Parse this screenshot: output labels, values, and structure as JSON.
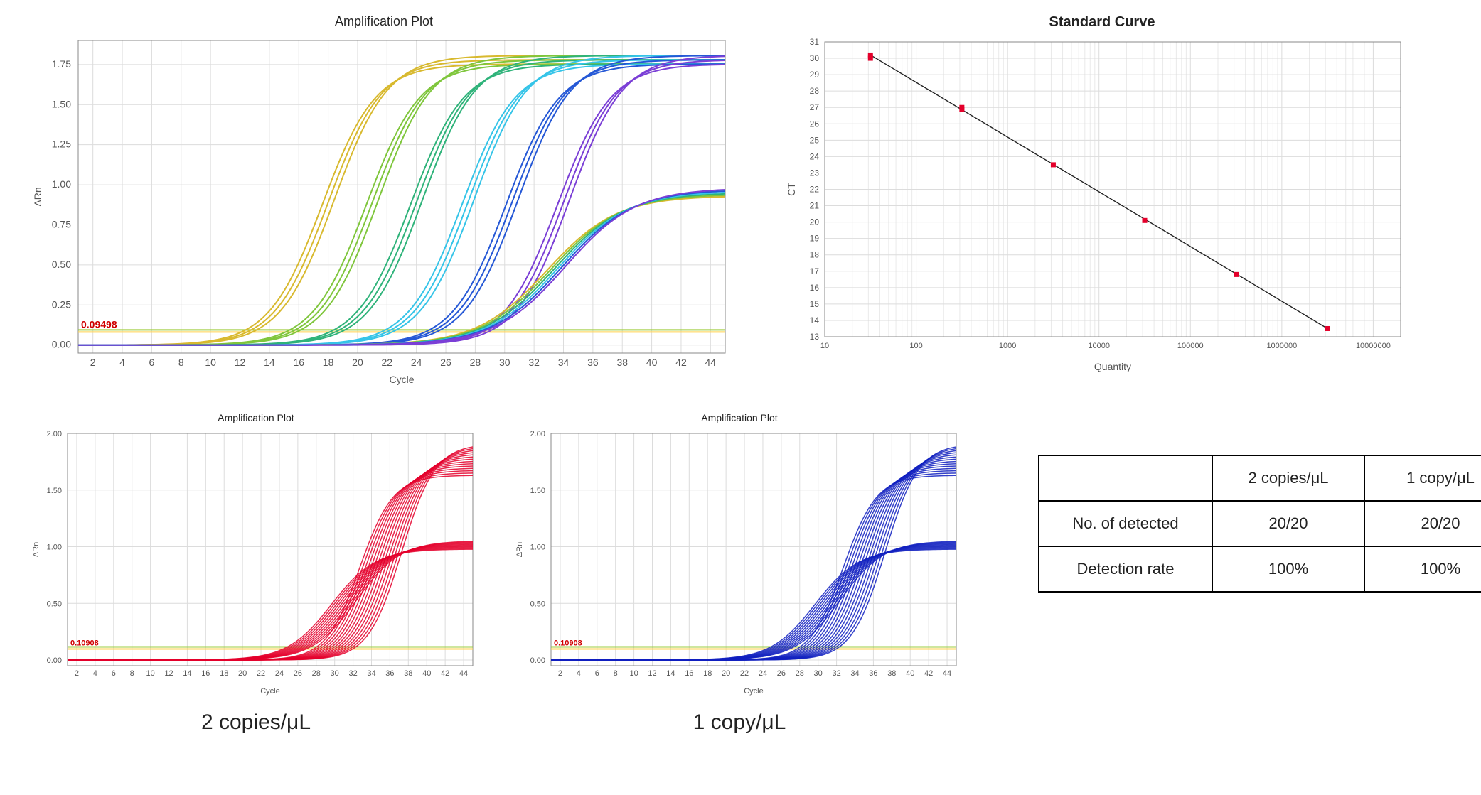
{
  "amp_main": {
    "type": "line",
    "title": "Amplification Plot",
    "xlabel": "Cycle",
    "ylabel": "ΔRn",
    "xlim": [
      1,
      45
    ],
    "ylim": [
      -0.05,
      1.9
    ],
    "xticks": [
      2,
      4,
      6,
      8,
      10,
      12,
      14,
      16,
      18,
      20,
      22,
      24,
      26,
      28,
      30,
      32,
      34,
      36,
      38,
      40,
      42,
      44
    ],
    "yticks": [
      0.0,
      0.25,
      0.5,
      0.75,
      1.0,
      1.25,
      1.5,
      1.75
    ],
    "threshold": 0.09,
    "threshold_label": "0.09498",
    "threshold_colors": [
      "#9ecc3c",
      "#ffd24d"
    ],
    "grid_color": "#dcdcdc",
    "background_color": "#ffffff",
    "border_color": "#888888",
    "line_width": 2,
    "amplitude_high": 1.78,
    "amplitude_low": 0.96,
    "groups": [
      {
        "color": "#d8b92e",
        "midshift": 18,
        "reps": 3
      },
      {
        "color": "#7fc63c",
        "midshift": 21,
        "reps": 3
      },
      {
        "color": "#2fb37a",
        "midshift": 24,
        "reps": 3
      },
      {
        "color": "#35c4e8",
        "midshift": 27.5,
        "reps": 3
      },
      {
        "color": "#2558d6",
        "midshift": 30.5,
        "reps": 3
      },
      {
        "color": "#7b3fd6",
        "midshift": 34,
        "reps": 3
      }
    ],
    "low_group": {
      "colors": [
        "#d8b92e",
        "#7fc63c",
        "#2fb37a",
        "#35c4e8",
        "#2558d6",
        "#7b3fd6"
      ],
      "midshift": 33.5,
      "reps": 6
    }
  },
  "std_curve": {
    "type": "scatter",
    "title": "Standard Curve",
    "xlabel": "Quantity",
    "ylabel": "CT",
    "xlim_log10": [
      1,
      7.3
    ],
    "ylim": [
      13,
      31
    ],
    "yticks": [
      13,
      14,
      15,
      16,
      17,
      18,
      19,
      20,
      21,
      22,
      23,
      24,
      25,
      26,
      27,
      28,
      29,
      30,
      31
    ],
    "xticks_log10": [
      1,
      2,
      3,
      4,
      5,
      6,
      7
    ],
    "xtick_labels": [
      "10",
      "100",
      "1000",
      "10000",
      "100000",
      "1000000",
      "10000000"
    ],
    "grid_color": "#dcdcdc",
    "background_color": "#ffffff",
    "border_color": "#888888",
    "point_color": "#e4002b",
    "point_size": 7,
    "line_color": "#222222",
    "line_width": 1.4,
    "points": [
      {
        "logq": 1.5,
        "ct": 30.2
      },
      {
        "logq": 1.5,
        "ct": 30.0
      },
      {
        "logq": 2.5,
        "ct": 26.9
      },
      {
        "logq": 2.5,
        "ct": 27.0
      },
      {
        "logq": 3.5,
        "ct": 23.5
      },
      {
        "logq": 4.5,
        "ct": 20.1
      },
      {
        "logq": 5.5,
        "ct": 16.8
      },
      {
        "logq": 6.5,
        "ct": 13.5
      }
    ],
    "fit": {
      "x1_log": 1.5,
      "y1": 30.2,
      "x2_log": 6.5,
      "y2": 13.5
    }
  },
  "amp_small": {
    "title": "Amplification Plot",
    "xlabel": "Cycle",
    "ylabel": "ΔRn",
    "xlim": [
      1,
      45
    ],
    "ylim": [
      -0.05,
      2.0
    ],
    "xticks": [
      2,
      4,
      6,
      8,
      10,
      12,
      14,
      16,
      18,
      20,
      22,
      24,
      26,
      28,
      30,
      32,
      34,
      36,
      38,
      40,
      42,
      44
    ],
    "yticks": [
      0.0,
      0.5,
      1.0,
      1.5,
      2.0
    ],
    "threshold": 0.11,
    "threshold_label": "0.10908",
    "threshold_colors": [
      "#9ecc3c",
      "#ffd24d"
    ],
    "grid_color": "#dcdcdc",
    "background_color": "#ffffff",
    "border_color": "#888888",
    "line_width": 1.5,
    "amplitude_high": 1.78,
    "amplitude_low": 1.02,
    "reps_high": 14,
    "reps_low": 10,
    "variants": [
      {
        "key": "two",
        "color": "#e4002b",
        "mid_high": 35,
        "mid_low": 31,
        "caption": "2 copies/μL"
      },
      {
        "key": "one",
        "color": "#1020c0",
        "mid_high": 35,
        "mid_low": 31,
        "caption": "1 copy/μL"
      }
    ]
  },
  "detect_table": {
    "columns": [
      "",
      "2 copies/μL",
      "1 copy/μL"
    ],
    "rows": [
      [
        "No. of detected",
        "20/20",
        "20/20"
      ],
      [
        "Detection rate",
        "100%",
        "100%"
      ]
    ],
    "border_color": "#000000",
    "font_size": 22
  }
}
